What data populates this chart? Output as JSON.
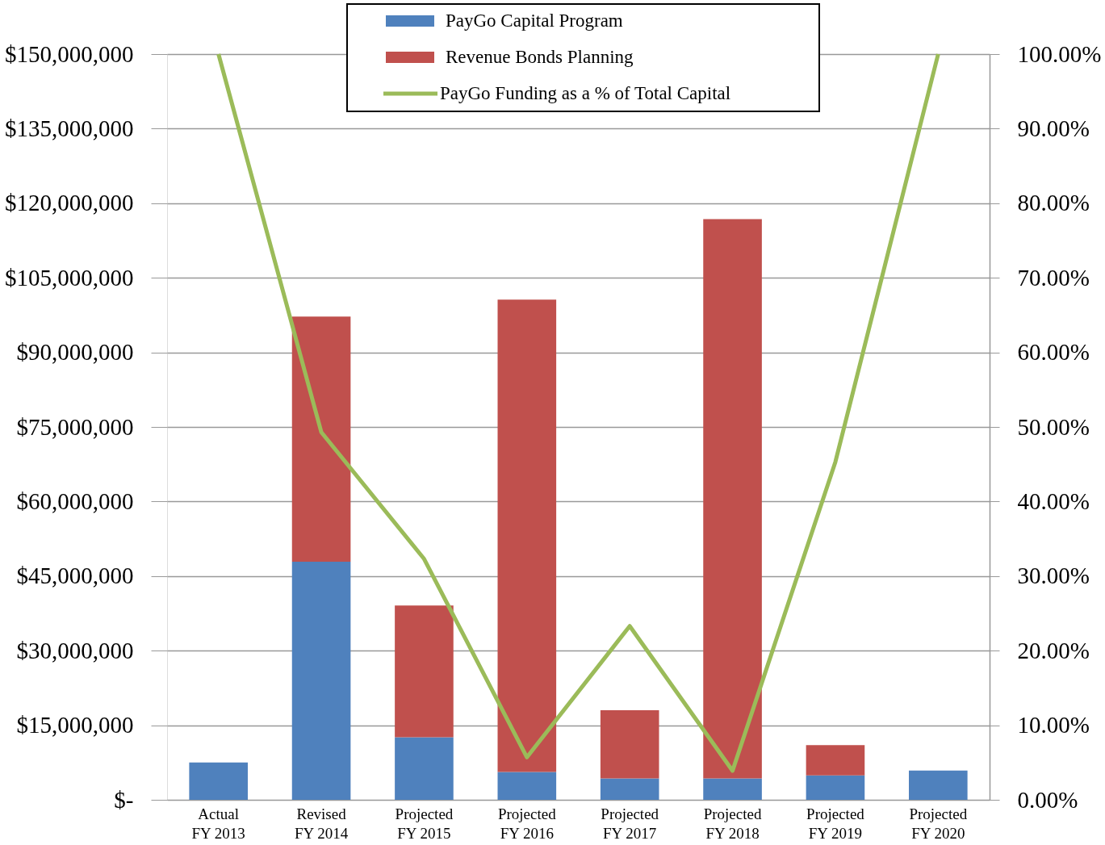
{
  "chart_data": {
    "type": "bar",
    "stacked": true,
    "categories": [
      "Actual\nFY 2013",
      "Revised\nFY 2014",
      "Projected\nFY 2015",
      "Projected\nFY 2016",
      "Projected\nFY 2017",
      "Projected\nFY 2018",
      "Projected\nFY 2019",
      "Projected\nFY 2020"
    ],
    "series": [
      {
        "name": "PayGo Capital Program",
        "color": "#4f81bd",
        "values": [
          7500000,
          47900000,
          12600000,
          5600000,
          4300000,
          4300000,
          4900000,
          5900000
        ]
      },
      {
        "name": "Revenue Bonds Planning",
        "color": "#c0504d",
        "values": [
          0,
          49300000,
          26500000,
          95000000,
          13700000,
          112500000,
          6100000,
          0
        ]
      },
      {
        "name": "PayGo Funding as a % of Total Capital",
        "color": "#9bbb59",
        "type": "line",
        "axis": "y2",
        "values": [
          100,
          49.3,
          32.3,
          5.7,
          23.3,
          3.9,
          45.3,
          100
        ]
      }
    ],
    "ylim": [
      0,
      150000000
    ],
    "yticks": [
      {
        "value": 0,
        "label": "$-"
      },
      {
        "value": 15000000,
        "label": "$15,000,000"
      },
      {
        "value": 30000000,
        "label": "$30,000,000"
      },
      {
        "value": 45000000,
        "label": "$45,000,000"
      },
      {
        "value": 60000000,
        "label": "$60,000,000"
      },
      {
        "value": 75000000,
        "label": "$75,000,000"
      },
      {
        "value": 90000000,
        "label": "$90,000,000"
      },
      {
        "value": 105000000,
        "label": "$105,000,000"
      },
      {
        "value": 120000000,
        "label": "$120,000,000"
      },
      {
        "value": 135000000,
        "label": "$135,000,000"
      },
      {
        "value": 150000000,
        "label": "$150,000,000"
      }
    ],
    "y2lim": [
      0,
      100
    ],
    "y2ticks": [
      {
        "value": 0,
        "label": "0.00%"
      },
      {
        "value": 10,
        "label": "10.00%"
      },
      {
        "value": 20,
        "label": "20.00%"
      },
      {
        "value": 30,
        "label": "30.00%"
      },
      {
        "value": 40,
        "label": "40.00%"
      },
      {
        "value": 50,
        "label": "50.00%"
      },
      {
        "value": 60,
        "label": "60.00%"
      },
      {
        "value": 70,
        "label": "70.00%"
      },
      {
        "value": 80,
        "label": "80.00%"
      },
      {
        "value": 90,
        "label": "90.00%"
      },
      {
        "value": 100,
        "label": "100.00%"
      }
    ],
    "grid": "y",
    "legend": "top",
    "marker": "none",
    "line_style": "solid"
  }
}
